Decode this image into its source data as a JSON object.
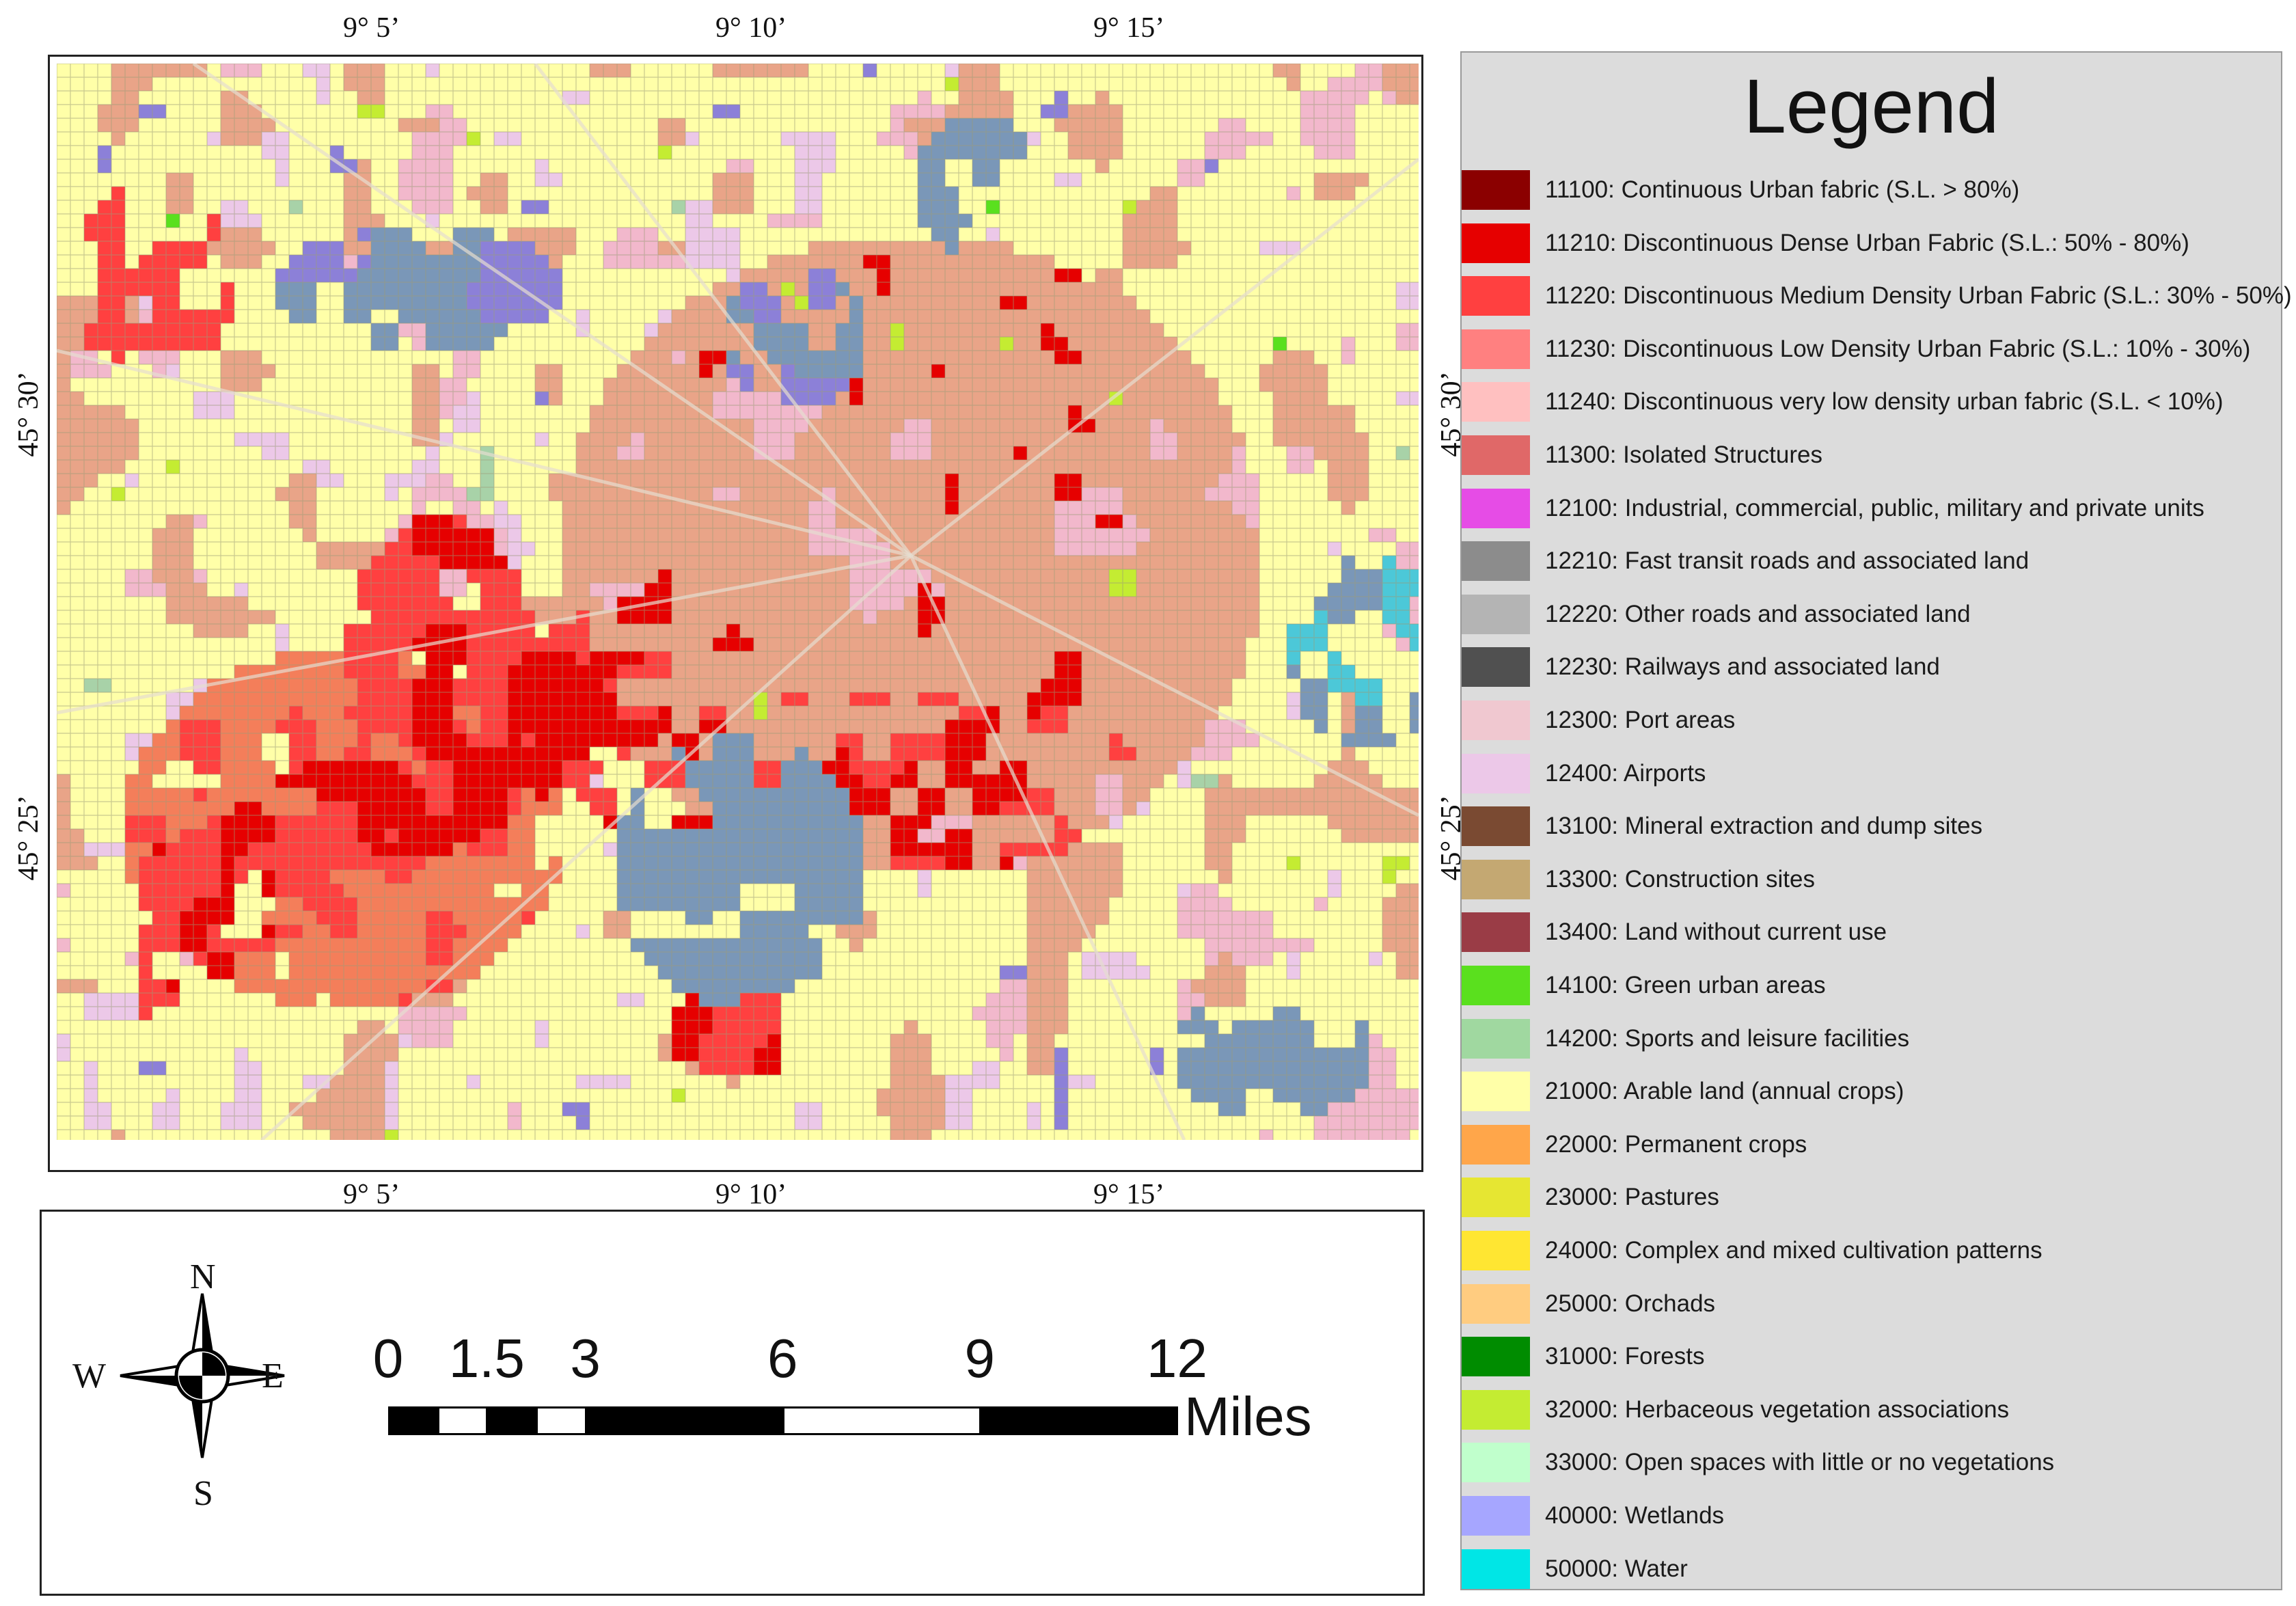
{
  "map": {
    "lon_labels": [
      "9° 5’",
      "9° 10’",
      "9° 15’"
    ],
    "lat_labels": [
      "45° 30’",
      "45° 25’"
    ]
  },
  "legend": {
    "title": "Legend",
    "items": [
      {
        "label": "11100: Continuous Urban fabric (S.L. > 80%)",
        "color": "#8b0000"
      },
      {
        "label": "11210: Discontinuous Dense Urban Fabric (S.L.: 50% - 80%)",
        "color": "#e60000"
      },
      {
        "label": "11220: Discontinuous Medium Density Urban Fabric (S.L.: 30% - 50%)",
        "color": "#ff4040"
      },
      {
        "label": "11230: Discontinuous Low Density Urban Fabric (S.L.: 10% - 30%)",
        "color": "#ff8080"
      },
      {
        "label": "11240: Discontinuous very low density urban fabric (S.L. < 10%)",
        "color": "#ffc0c0"
      },
      {
        "label": "11300: Isolated Structures",
        "color": "#e06868"
      },
      {
        "label": "12100: Industrial, commercial, public, military and private units",
        "color": "#e64ce6"
      },
      {
        "label": "12210: Fast transit roads and associated land",
        "color": "#8c8c8c"
      },
      {
        "label": "12220: Other roads and associated land",
        "color": "#b4b4b4"
      },
      {
        "label": "12230: Railways and associated land",
        "color": "#505050"
      },
      {
        "label": "12300: Port areas",
        "color": "#f0c8d0"
      },
      {
        "label": "12400: Airports",
        "color": "#ecc8e8"
      },
      {
        "label": "13100: Mineral extraction and dump sites",
        "color": "#7a4a32"
      },
      {
        "label": "13300: Construction sites",
        "color": "#c4a872"
      },
      {
        "label": "13400: Land without current use",
        "color": "#9a3c46"
      },
      {
        "label": "14100: Green urban areas",
        "color": "#5ae01e"
      },
      {
        "label": "14200: Sports and leisure facilities",
        "color": "#a0d8a0"
      },
      {
        "label": "21000: Arable land (annual crops)",
        "color": "#ffffa8"
      },
      {
        "label": "22000: Permanent crops",
        "color": "#ffa64a"
      },
      {
        "label": "23000: Pastures",
        "color": "#e6e632"
      },
      {
        "label": "24000: Complex and mixed cultivation patterns",
        "color": "#ffe632"
      },
      {
        "label": "25000: Orchads",
        "color": "#ffcc80"
      },
      {
        "label": "31000: Forests",
        "color": "#008c00"
      },
      {
        "label": "32000: Herbaceous vegetation associations",
        "color": "#c4ec32"
      },
      {
        "label": "33000: Open spaces with little or no vegetations",
        "color": "#c0ffcc"
      },
      {
        "label": "40000: Wetlands",
        "color": "#a6a6ff"
      },
      {
        "label": "50000: Water",
        "color": "#00e6e6"
      }
    ]
  },
  "scale_bar": {
    "labels": [
      "0",
      "1.5",
      "3",
      "6",
      "9",
      "12"
    ],
    "values": [
      0,
      1.5,
      3,
      6,
      9,
      12
    ],
    "unit": "Miles"
  },
  "north_arrow": {
    "n": "N",
    "s": "S",
    "e": "E",
    "w": "W"
  }
}
